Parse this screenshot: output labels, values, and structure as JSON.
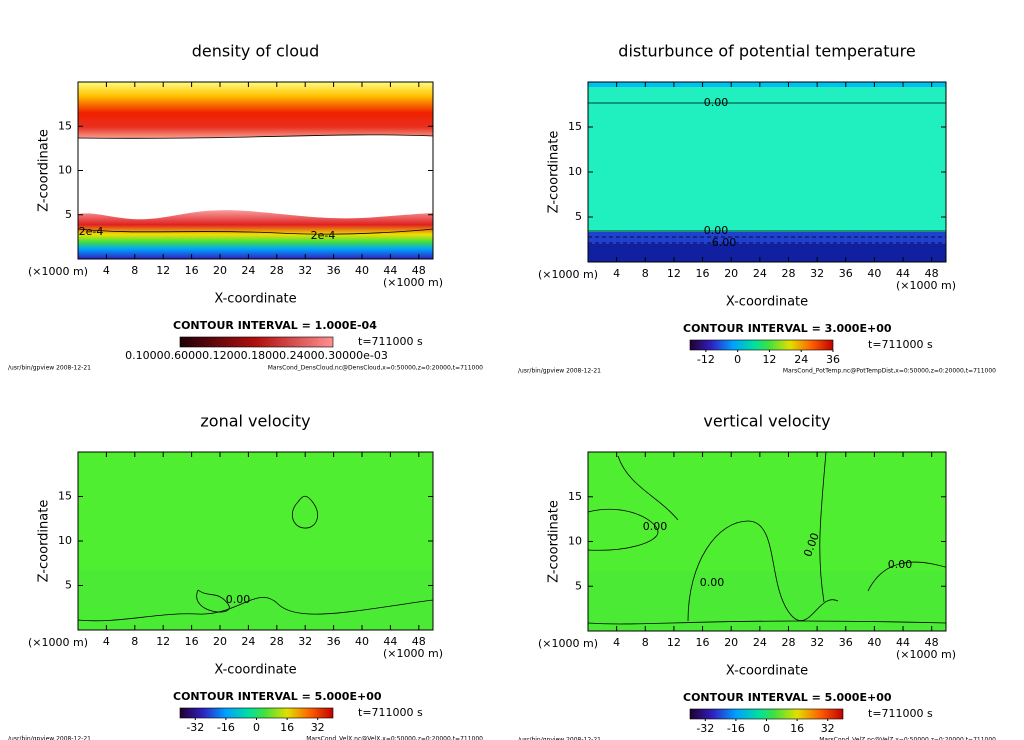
{
  "chart_data": [
    {
      "type": "contour",
      "title": "density of cloud",
      "xlabel": "X-coordinate",
      "ylabel": "Z-coordinate",
      "x_unit_label": "(×1000 m)",
      "xlim": [
        0,
        50
      ],
      "ylim": [
        0,
        20
      ],
      "xticks": [
        4,
        8,
        12,
        16,
        20,
        24,
        28,
        32,
        36,
        40,
        44,
        48
      ],
      "yticks": [
        5,
        10,
        15
      ],
      "contour_interval": "CONTOUR INTERVAL = 1.000E-04",
      "time": "t=711000 s",
      "colorbar_label": "0.10000.60000.12000.18000.24000.30000e-03",
      "contour_labels": [
        "2e-4",
        "2e-4"
      ],
      "footer_left": "/usr/bin/gpview   2008-12-21",
      "footer_right": "MarsCond_DensCloud.nc@DensCloud,x=0:50000,z=0:20000,t=711000"
    },
    {
      "type": "contour",
      "title": "disturbunce of potential temperature",
      "xlabel": "X-coordinate",
      "ylabel": "Z-coordinate",
      "x_unit_label": "(×1000 m)",
      "xlim": [
        0,
        50
      ],
      "ylim": [
        0,
        20
      ],
      "xticks": [
        4,
        8,
        12,
        16,
        20,
        24,
        28,
        32,
        36,
        40,
        44,
        48
      ],
      "yticks": [
        5,
        10,
        15
      ],
      "contour_interval": "CONTOUR INTERVAL = 3.000E+00",
      "time": "t=711000 s",
      "colorbar_lim": [
        -18,
        36
      ],
      "colorbar_ticks": [
        -12,
        0,
        12,
        24,
        36
      ],
      "contour_labels": [
        "0.00",
        "0.00",
        "-6.00"
      ],
      "footer_left": "/usr/bin/gpview   2008-12-21",
      "footer_right": "MarsCond_PotTemp.nc@PotTempDist,x=0:50000,z=0:20000,t=711000"
    },
    {
      "type": "contour",
      "title": "zonal velocity",
      "xlabel": "X-coordinate",
      "ylabel": "Z-coordinate",
      "x_unit_label": "(×1000 m)",
      "xlim": [
        0,
        50
      ],
      "ylim": [
        0,
        20
      ],
      "xticks": [
        4,
        8,
        12,
        16,
        20,
        24,
        28,
        32,
        36,
        40,
        44,
        48
      ],
      "yticks": [
        5,
        10,
        15
      ],
      "contour_interval": "CONTOUR INTERVAL = 5.000E+00",
      "time": "t=711000 s",
      "colorbar_lim": [
        -40,
        40
      ],
      "colorbar_ticks": [
        -32,
        -16,
        0,
        16,
        32
      ],
      "contour_labels": [
        "0.00"
      ],
      "footer_left": "/usr/bin/gpview   2008-12-21",
      "footer_right": "MarsCond_VelX.nc@VelX,x=0:50000,z=0:20000,t=711000"
    },
    {
      "type": "contour",
      "title": "vertical velocity",
      "xlabel": "X-coordinate",
      "ylabel": "Z-coordinate",
      "x_unit_label": "(×1000 m)",
      "xlim": [
        0,
        50
      ],
      "ylim": [
        0,
        20
      ],
      "xticks": [
        4,
        8,
        12,
        16,
        20,
        24,
        28,
        32,
        36,
        40,
        44,
        48
      ],
      "yticks": [
        5,
        10,
        15
      ],
      "contour_interval": "CONTOUR INTERVAL = 5.000E+00",
      "time": "t=711000 s",
      "colorbar_lim": [
        -40,
        40
      ],
      "colorbar_ticks": [
        -32,
        -16,
        0,
        16,
        32
      ],
      "contour_labels": [
        "0.00",
        "0.00",
        "0.00",
        "0.00"
      ],
      "footer_left": "/usr/bin/gpview   2008-12-21",
      "footer_right": "MarsCond_VelZ.nc@VelZ,x=0:50000,z=0:20000,t=711000"
    }
  ]
}
